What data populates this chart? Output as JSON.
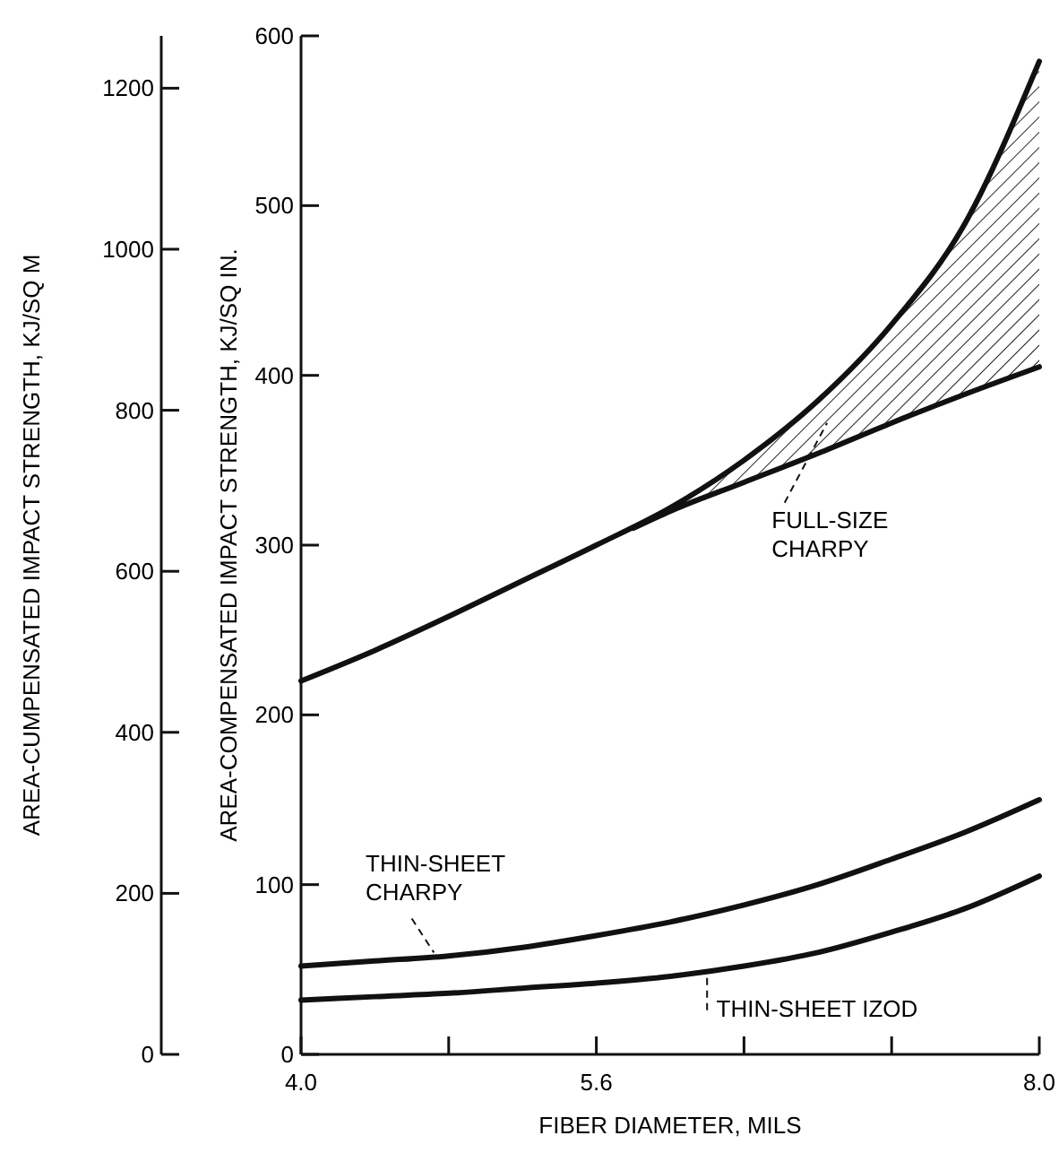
{
  "chart_data": {
    "type": "line",
    "xlabel": "FIBER DIAMETER, MILS",
    "ylabel": "AREA-COMPENSATED IMPACT STRENGTH, KJ/SQ IN.",
    "y2label": "AREA-CUMPENSATED IMPACT STRENGTH, KJ/SQ M",
    "xlim": [
      4.0,
      8.0
    ],
    "xticks": [
      {
        "value": 4.0,
        "label": "4.0"
      },
      {
        "value": 4.8,
        "label": null
      },
      5.6,
      {
        "value": 6.4,
        "label": null
      },
      {
        "value": 7.2,
        "label": null
      },
      {
        "value": 8.0,
        "label": "8.0"
      }
    ],
    "ylim": [
      0,
      600
    ],
    "yticks": [
      0,
      100,
      200,
      300,
      400,
      500,
      600
    ],
    "y2lim": [
      0,
      1265
    ],
    "y2ticks": [
      0,
      200,
      400,
      600,
      800,
      1000,
      1200
    ],
    "grid": false,
    "marker": "none",
    "line_style": "solid",
    "series": [
      {
        "color": "#111111",
        "x": [
          4.0,
          4.4,
          4.8,
          5.2,
          5.6,
          6.0,
          6.4,
          6.8,
          7.2,
          7.6,
          8.0
        ],
        "values": [
          220,
          238,
          258,
          279,
          300,
          322,
          350,
          385,
          430,
          490,
          585
        ]
      },
      {
        "name": "FULL-SIZE CHARPY",
        "color": "#111111",
        "x": [
          5.8,
          6.0,
          6.4,
          6.8,
          7.2,
          7.6,
          8.0
        ],
        "values": [
          310,
          320,
          337,
          354,
          372,
          389,
          405
        ],
        "lower": [
          310,
          320,
          337,
          354,
          372,
          389,
          405
        ],
        "upper": [
          310,
          322,
          350,
          385,
          430,
          490,
          585
        ]
      },
      {
        "name": "THIN-SHEET CHARPY",
        "color": "#111111",
        "x": [
          4.0,
          4.4,
          4.8,
          5.2,
          5.6,
          6.0,
          6.4,
          6.8,
          7.2,
          7.6,
          8.0
        ],
        "values": [
          52,
          55,
          58,
          63,
          70,
          78,
          88,
          100,
          115,
          131,
          150
        ]
      },
      {
        "name": "THIN-SHEET IZOD",
        "color": "#111111",
        "x": [
          4.0,
          4.4,
          4.8,
          5.2,
          5.6,
          6.0,
          6.4,
          6.8,
          7.2,
          7.6,
          8.0
        ],
        "values": [
          32,
          34,
          36,
          39,
          42,
          46,
          52,
          60,
          72,
          86,
          105
        ]
      }
    ]
  }
}
